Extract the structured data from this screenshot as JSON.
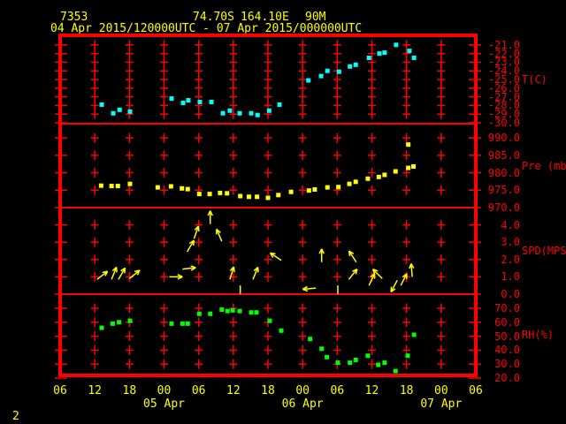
{
  "header": {
    "station_id": "7353",
    "latitude": "74.70S",
    "longitude": "164.10E",
    "elevation": "90M",
    "period": "04 Apr 2015/120000UTC - 07 Apr 2015/000000UTC"
  },
  "footer": {
    "page_number": "2"
  },
  "colors": {
    "background": "#000000",
    "grid": "#ff0000",
    "axis_text": "#ff0000",
    "header_text": "#ffff00",
    "temperature": "#00ffff",
    "pressure": "#ffff00",
    "wind": "#ffff00",
    "humidity": "#00ff00"
  },
  "chart_data": {
    "type": "scatter",
    "title": "04 Apr 2015/120000UTC - 07 Apr 2015/000000UTC",
    "x_axis": {
      "unit": "hours since 04 Apr 2015 06 UTC",
      "span_hours": 72,
      "tick_interval_hours": 6,
      "hour_ticks": [
        {
          "h": 0,
          "label": "06"
        },
        {
          "h": 6,
          "label": "12"
        },
        {
          "h": 12,
          "label": "18"
        },
        {
          "h": 18,
          "label": "00"
        },
        {
          "h": 24,
          "label": "06"
        },
        {
          "h": 30,
          "label": "12"
        },
        {
          "h": 36,
          "label": "18"
        },
        {
          "h": 42,
          "label": "00"
        },
        {
          "h": 48,
          "label": "06"
        },
        {
          "h": 54,
          "label": "12"
        },
        {
          "h": 60,
          "label": "18"
        },
        {
          "h": 66,
          "label": "00"
        },
        {
          "h": 72,
          "label": "06"
        }
      ],
      "date_labels": [
        {
          "h": 18,
          "label": "05 Apr"
        },
        {
          "h": 42,
          "label": "06 Apr"
        },
        {
          "h": 66,
          "label": "07 Apr"
        }
      ]
    },
    "panels": [
      {
        "id": "temp",
        "ylabel": "T(C)",
        "color": "#00ffff",
        "ylim": [
          -30.1,
          -19.9
        ],
        "yticks": [
          {
            "v": -21,
            "label": "-21.0"
          },
          {
            "v": -22,
            "label": "-22.0"
          },
          {
            "v": -23,
            "label": "-23.0"
          },
          {
            "v": -24,
            "label": "-24.0"
          },
          {
            "v": -25,
            "label": "-25.0"
          },
          {
            "v": -26,
            "label": "-26.0"
          },
          {
            "v": -27,
            "label": "-27.0"
          },
          {
            "v": -28,
            "label": "-28.0"
          },
          {
            "v": -29,
            "label": "-29.0"
          },
          {
            "v": -30,
            "label": "-30.0"
          }
        ],
        "series": [
          {
            "h": 7.2,
            "v": -27.9
          },
          {
            "h": 9.2,
            "v": -28.9
          },
          {
            "h": 10.3,
            "v": -28.5
          },
          {
            "h": 12.1,
            "v": -28.7
          },
          {
            "h": 19.3,
            "v": -27.2
          },
          {
            "h": 21.3,
            "v": -27.7
          },
          {
            "h": 22.2,
            "v": -27.4
          },
          {
            "h": 24.2,
            "v": -27.6
          },
          {
            "h": 26.2,
            "v": -27.6
          },
          {
            "h": 28.2,
            "v": -28.9
          },
          {
            "h": 29.4,
            "v": -28.6
          },
          {
            "h": 31.1,
            "v": -28.9
          },
          {
            "h": 33.1,
            "v": -28.9
          },
          {
            "h": 34.2,
            "v": -29.1
          },
          {
            "h": 36.2,
            "v": -28.6
          },
          {
            "h": 38.0,
            "v": -27.9
          },
          {
            "h": 43.0,
            "v": -25.1
          },
          {
            "h": 45.2,
            "v": -24.6
          },
          {
            "h": 46.3,
            "v": -24.0
          },
          {
            "h": 48.3,
            "v": -24.1
          },
          {
            "h": 50.2,
            "v": -23.5
          },
          {
            "h": 51.2,
            "v": -23.3
          },
          {
            "h": 53.5,
            "v": -22.5
          },
          {
            "h": 55.3,
            "v": -22.0
          },
          {
            "h": 56.2,
            "v": -21.9
          },
          {
            "h": 58.2,
            "v": -21.0
          },
          {
            "h": 60.5,
            "v": -21.7
          },
          {
            "h": 61.3,
            "v": -22.5
          }
        ]
      },
      {
        "id": "pres",
        "ylabel": "Pre (mb)",
        "color": "#ffff00",
        "ylim": [
          970.0,
          994.1
        ],
        "yticks": [
          {
            "v": 990,
            "label": "990.0"
          },
          {
            "v": 985,
            "label": "985.0"
          },
          {
            "v": 980,
            "label": "980.0"
          },
          {
            "v": 975,
            "label": "975.0"
          },
          {
            "v": 970,
            "label": "970.0"
          }
        ],
        "series": [
          {
            "h": 7.1,
            "v": 976.3
          },
          {
            "h": 8.9,
            "v": 976.2
          },
          {
            "h": 10.0,
            "v": 976.2
          },
          {
            "h": 12.1,
            "v": 976.8
          },
          {
            "h": 16.9,
            "v": 975.8
          },
          {
            "h": 19.2,
            "v": 976.1
          },
          {
            "h": 21.1,
            "v": 975.5
          },
          {
            "h": 22.1,
            "v": 975.3
          },
          {
            "h": 24.1,
            "v": 973.9
          },
          {
            "h": 25.9,
            "v": 973.9
          },
          {
            "h": 27.7,
            "v": 974.2
          },
          {
            "h": 28.9,
            "v": 974.1
          },
          {
            "h": 31.2,
            "v": 973.3
          },
          {
            "h": 32.7,
            "v": 973.1
          },
          {
            "h": 34.1,
            "v": 973.1
          },
          {
            "h": 36.0,
            "v": 972.8
          },
          {
            "h": 37.8,
            "v": 973.6
          },
          {
            "h": 40.0,
            "v": 974.5
          },
          {
            "h": 43.1,
            "v": 974.9
          },
          {
            "h": 44.1,
            "v": 975.2
          },
          {
            "h": 46.3,
            "v": 975.8
          },
          {
            "h": 48.2,
            "v": 975.9
          },
          {
            "h": 50.1,
            "v": 976.8
          },
          {
            "h": 51.2,
            "v": 977.4
          },
          {
            "h": 53.3,
            "v": 978.3
          },
          {
            "h": 55.2,
            "v": 978.8
          },
          {
            "h": 56.2,
            "v": 979.4
          },
          {
            "h": 58.1,
            "v": 980.4
          },
          {
            "h": 60.3,
            "v": 981.4
          },
          {
            "h": 60.3,
            "v": 988.1
          },
          {
            "h": 61.2,
            "v": 981.8
          }
        ]
      },
      {
        "id": "spd",
        "ylabel": "SPD(MPS)",
        "color": "#ffff00",
        "ylim": [
          0,
          5
        ],
        "yticks": [
          {
            "v": 4,
            "label": "4.0"
          },
          {
            "v": 3,
            "label": "3.0"
          },
          {
            "v": 2,
            "label": "2.0"
          },
          {
            "v": 1,
            "label": "1.0"
          },
          {
            "v": 0,
            "label": "0.0"
          }
        ],
        "arrows": [
          {
            "h": 6.4,
            "v": 0.85,
            "dir": 52
          },
          {
            "h": 8.9,
            "v": 0.85,
            "dir": 22
          },
          {
            "h": 10.1,
            "v": 0.85,
            "dir": 30
          },
          {
            "h": 12.0,
            "v": 0.9,
            "dir": 51
          },
          {
            "h": 18.9,
            "v": 1.0,
            "dir": 90
          },
          {
            "h": 21.2,
            "v": 1.45,
            "dir": 84
          },
          {
            "h": 22.0,
            "v": 2.45,
            "dir": 31
          },
          {
            "h": 23.2,
            "v": 3.2,
            "dir": 19
          },
          {
            "h": 26.0,
            "v": 4.05,
            "dir": 0
          },
          {
            "h": 28.0,
            "v": 3.05,
            "dir": -23
          },
          {
            "h": 29.4,
            "v": 0.85,
            "dir": 17
          },
          {
            "h": 31.2,
            "v": 0.25,
            "dir": 0,
            "calm": true
          },
          {
            "h": 33.4,
            "v": 0.85,
            "dir": 22
          },
          {
            "h": 38.3,
            "v": 1.95,
            "dir": -56
          },
          {
            "h": 44.3,
            "v": 0.35,
            "dir": -95
          },
          {
            "h": 45.3,
            "v": 1.85,
            "dir": 0
          },
          {
            "h": 48.1,
            "v": 0.25,
            "dir": 0,
            "calm": true
          },
          {
            "h": 50.0,
            "v": 0.85,
            "dir": 39
          },
          {
            "h": 51.3,
            "v": 1.85,
            "dir": -33
          },
          {
            "h": 53.5,
            "v": 0.5,
            "dir": 25
          },
          {
            "h": 55.8,
            "v": 0.9,
            "dir": -45
          },
          {
            "h": 58.4,
            "v": 0.8,
            "dir": -152
          },
          {
            "h": 59.0,
            "v": 0.5,
            "dir": 27
          },
          {
            "h": 61.0,
            "v": 1.0,
            "dir": -5
          }
        ]
      },
      {
        "id": "rh",
        "ylabel": "RH(%)",
        "color": "#00ff00",
        "ylim": [
          21.9,
          80.1
        ],
        "yticks": [
          {
            "v": 70,
            "label": "70.0"
          },
          {
            "v": 60,
            "label": "60.0"
          },
          {
            "v": 50,
            "label": "50.0"
          },
          {
            "v": 40,
            "label": "40.0"
          },
          {
            "v": 30,
            "label": "30.0"
          },
          {
            "v": 20,
            "label": "20.0"
          }
        ],
        "series": [
          {
            "h": 7.2,
            "v": 56
          },
          {
            "h": 9.1,
            "v": 59
          },
          {
            "h": 10.2,
            "v": 60
          },
          {
            "h": 12.1,
            "v": 61
          },
          {
            "h": 19.3,
            "v": 59
          },
          {
            "h": 21.2,
            "v": 59
          },
          {
            "h": 22.1,
            "v": 59
          },
          {
            "h": 24.1,
            "v": 66
          },
          {
            "h": 26.0,
            "v": 66
          },
          {
            "h": 28.0,
            "v": 69
          },
          {
            "h": 29.0,
            "v": 68
          },
          {
            "h": 29.9,
            "v": 68.5
          },
          {
            "h": 31.1,
            "v": 68
          },
          {
            "h": 33.1,
            "v": 67
          },
          {
            "h": 34.0,
            "v": 67
          },
          {
            "h": 36.3,
            "v": 61
          },
          {
            "h": 38.3,
            "v": 54
          },
          {
            "h": 43.3,
            "v": 48
          },
          {
            "h": 45.3,
            "v": 41
          },
          {
            "h": 46.2,
            "v": 35
          },
          {
            "h": 48.1,
            "v": 31
          },
          {
            "h": 50.2,
            "v": 31
          },
          {
            "h": 51.2,
            "v": 33
          },
          {
            "h": 53.3,
            "v": 36
          },
          {
            "h": 55.1,
            "v": 29.5
          },
          {
            "h": 56.2,
            "v": 31
          },
          {
            "h": 58.1,
            "v": 25
          },
          {
            "h": 60.2,
            "v": 36
          },
          {
            "h": 61.3,
            "v": 51
          }
        ]
      }
    ]
  }
}
